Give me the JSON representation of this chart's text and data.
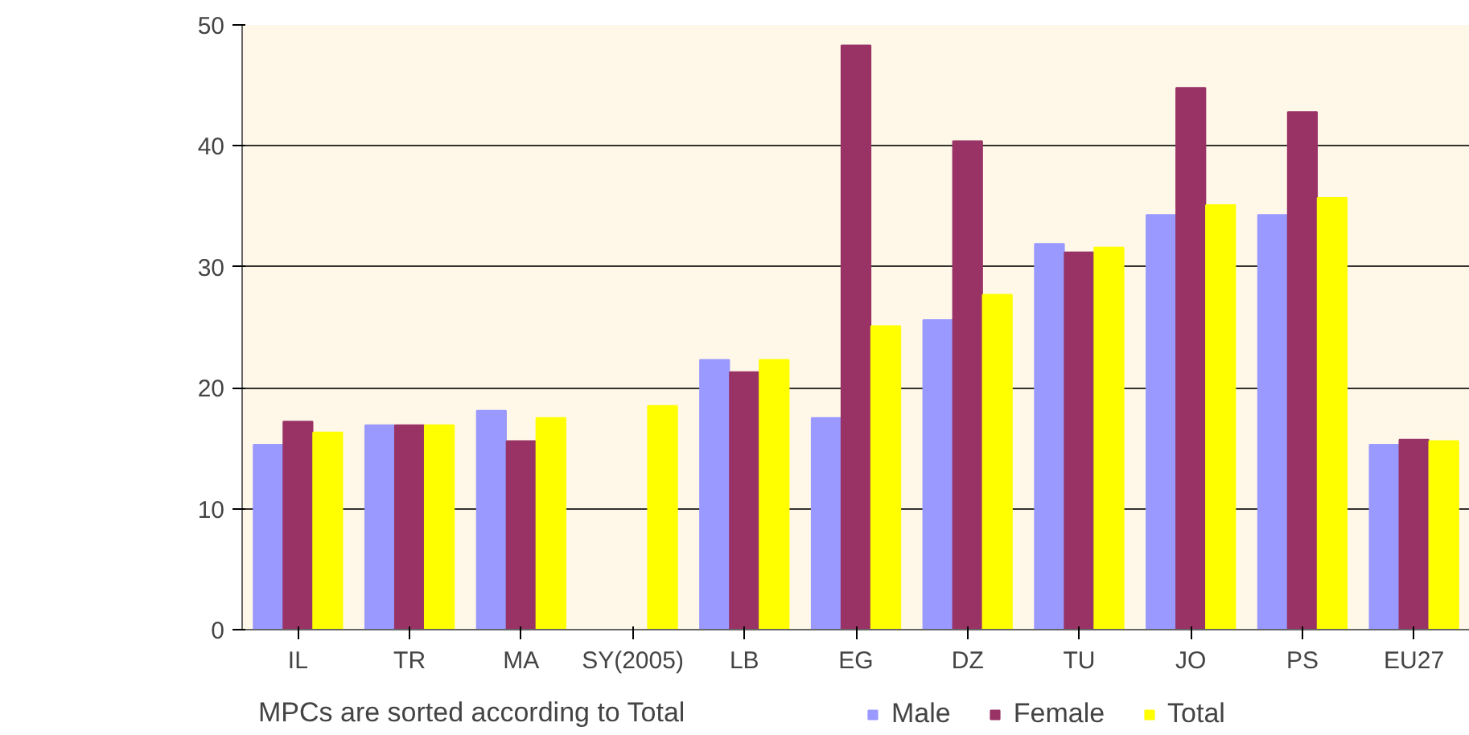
{
  "chart_data": {
    "type": "bar",
    "categories": [
      "IL",
      "TR",
      "MA",
      "SY(2005)",
      "LB",
      "EG",
      "DZ",
      "TU",
      "JO",
      "PS",
      "EU27"
    ],
    "series": [
      {
        "name": "Male",
        "color": "#9999ff",
        "values": [
          15.3,
          16.9,
          18.1,
          0,
          22.3,
          17.5,
          25.6,
          31.9,
          34.3,
          34.3,
          15.3
        ]
      },
      {
        "name": "Female",
        "color": "#993366",
        "values": [
          17.2,
          16.9,
          15.6,
          0,
          21.3,
          48.3,
          40.4,
          31.2,
          44.8,
          42.8,
          15.7
        ]
      },
      {
        "name": "Total",
        "color": "#ffff00",
        "values": [
          16.3,
          16.9,
          17.5,
          18.5,
          22.3,
          25.1,
          27.7,
          31.6,
          35.1,
          35.7,
          15.6
        ]
      }
    ],
    "ylim": [
      0,
      50
    ],
    "yticks": [
      0,
      10,
      20,
      30,
      40,
      50
    ],
    "grid": "y",
    "legend": "bottom",
    "annotations": [
      "MPCs are sorted according to Total"
    ]
  }
}
